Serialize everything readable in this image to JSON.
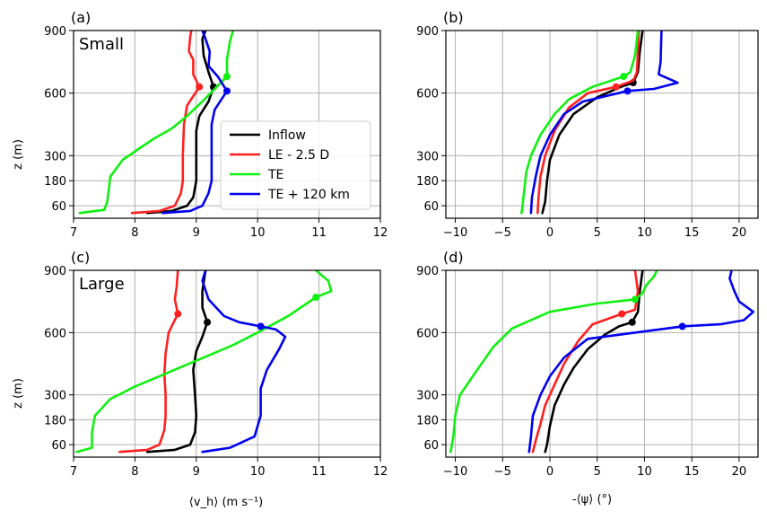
{
  "figure": {
    "legend": [
      {
        "label": "Inflow",
        "color": "#000000"
      },
      {
        "label": "LE - 2.5 D",
        "color": "#ff2020"
      },
      {
        "label": "TE",
        "color": "#10f010"
      },
      {
        "label": "TE + 120 km",
        "color": "#0000ee"
      }
    ],
    "xlabel_left": "⟨v_h⟩ (m s⁻¹)",
    "xlabel_right": "-⟨ψ⟩ (°)",
    "ylabel": "z (m)"
  },
  "chart_data": [
    {
      "type": "line",
      "panel": "(a)",
      "annotation": "Small",
      "xlim": [
        7,
        12
      ],
      "ylim": [
        0,
        900
      ],
      "xticks": [
        7,
        8,
        9,
        10,
        11,
        12
      ],
      "yticks": [
        60,
        180,
        300,
        600,
        900
      ],
      "series": [
        {
          "name": "Inflow",
          "color": "#000000",
          "marker": [
            9.28,
            630
          ],
          "points": [
            [
              8.2,
              25
            ],
            [
              8.6,
              35
            ],
            [
              8.85,
              60
            ],
            [
              8.95,
              100
            ],
            [
              9.0,
              180
            ],
            [
              9.0,
              300
            ],
            [
              9.0,
              420
            ],
            [
              9.05,
              490
            ],
            [
              9.2,
              560
            ],
            [
              9.28,
              630
            ],
            [
              9.2,
              700
            ],
            [
              9.12,
              780
            ],
            [
              9.1,
              860
            ],
            [
              9.15,
              900
            ]
          ]
        },
        {
          "name": "LE - 2.5 D",
          "color": "#ff2020",
          "marker": [
            9.05,
            630
          ],
          "points": [
            [
              7.95,
              25
            ],
            [
              8.4,
              35
            ],
            [
              8.65,
              60
            ],
            [
              8.75,
              120
            ],
            [
              8.78,
              180
            ],
            [
              8.78,
              300
            ],
            [
              8.8,
              450
            ],
            [
              8.85,
              540
            ],
            [
              9.05,
              630
            ],
            [
              8.95,
              690
            ],
            [
              8.95,
              760
            ],
            [
              8.88,
              800
            ],
            [
              8.9,
              870
            ],
            [
              8.92,
              900
            ]
          ]
        },
        {
          "name": "TE",
          "color": "#10f010",
          "marker": [
            9.5,
            680
          ],
          "points": [
            [
              7.1,
              25
            ],
            [
              7.5,
              40
            ],
            [
              7.55,
              80
            ],
            [
              7.6,
              200
            ],
            [
              7.8,
              280
            ],
            [
              8.1,
              340
            ],
            [
              8.3,
              380
            ],
            [
              8.6,
              430
            ],
            [
              8.85,
              490
            ],
            [
              9.1,
              560
            ],
            [
              9.3,
              620
            ],
            [
              9.5,
              680
            ],
            [
              9.5,
              760
            ],
            [
              9.55,
              850
            ],
            [
              9.6,
              900
            ]
          ]
        },
        {
          "name": "TE + 120 km",
          "color": "#0000ee",
          "marker": [
            9.5,
            610
          ],
          "points": [
            [
              8.45,
              25
            ],
            [
              8.9,
              35
            ],
            [
              9.1,
              60
            ],
            [
              9.2,
              120
            ],
            [
              9.25,
              180
            ],
            [
              9.25,
              300
            ],
            [
              9.25,
              450
            ],
            [
              9.3,
              520
            ],
            [
              9.5,
              610
            ],
            [
              9.35,
              680
            ],
            [
              9.2,
              730
            ],
            [
              9.22,
              800
            ],
            [
              9.15,
              860
            ],
            [
              9.1,
              900
            ]
          ]
        }
      ]
    },
    {
      "type": "line",
      "panel": "(b)",
      "annotation": "",
      "xlim": [
        -11,
        22
      ],
      "ylim": [
        0,
        900
      ],
      "xticks": [
        -10,
        -5,
        0,
        5,
        10,
        15,
        20
      ],
      "yticks": [
        60,
        180,
        300,
        600,
        900
      ],
      "series": [
        {
          "name": "Inflow",
          "color": "#000000",
          "marker": [
            8.8,
            650
          ],
          "points": [
            [
              -0.8,
              25
            ],
            [
              -0.5,
              80
            ],
            [
              -0.3,
              180
            ],
            [
              0.0,
              280
            ],
            [
              1.0,
              400
            ],
            [
              2.5,
              500
            ],
            [
              5.0,
              580
            ],
            [
              7.5,
              630
            ],
            [
              8.8,
              650
            ],
            [
              9.3,
              700
            ],
            [
              9.5,
              800
            ],
            [
              9.8,
              900
            ]
          ]
        },
        {
          "name": "LE - 2.5 D",
          "color": "#ff2020",
          "marker": [
            7.0,
            630
          ],
          "points": [
            [
              -1.3,
              25
            ],
            [
              -1.2,
              100
            ],
            [
              -1.0,
              200
            ],
            [
              -0.5,
              300
            ],
            [
              0.5,
              420
            ],
            [
              2.0,
              530
            ],
            [
              4.0,
              600
            ],
            [
              7.0,
              630
            ],
            [
              8.8,
              660
            ],
            [
              9.2,
              700
            ],
            [
              9.3,
              800
            ],
            [
              9.4,
              900
            ]
          ]
        },
        {
          "name": "TE",
          "color": "#10f010",
          "marker": [
            7.8,
            680
          ],
          "points": [
            [
              -3.0,
              25
            ],
            [
              -2.8,
              100
            ],
            [
              -2.5,
              220
            ],
            [
              -2.0,
              300
            ],
            [
              -1.0,
              400
            ],
            [
              0.5,
              500
            ],
            [
              2.0,
              570
            ],
            [
              4.5,
              630
            ],
            [
              7.8,
              680
            ],
            [
              8.5,
              700
            ],
            [
              9.0,
              780
            ],
            [
              9.3,
              900
            ]
          ]
        },
        {
          "name": "TE + 120 km",
          "color": "#0000ee",
          "marker": [
            8.2,
            610
          ],
          "points": [
            [
              -2.0,
              25
            ],
            [
              -1.9,
              100
            ],
            [
              -1.5,
              200
            ],
            [
              -1.0,
              300
            ],
            [
              0.0,
              400
            ],
            [
              1.5,
              500
            ],
            [
              3.5,
              560
            ],
            [
              8.2,
              610
            ],
            [
              11.0,
              620
            ],
            [
              13.5,
              650
            ],
            [
              11.5,
              690
            ],
            [
              11.7,
              750
            ],
            [
              11.8,
              900
            ]
          ]
        }
      ]
    },
    {
      "type": "line",
      "panel": "(c)",
      "annotation": "Large",
      "xlim": [
        7,
        12
      ],
      "ylim": [
        0,
        900
      ],
      "xticks": [
        7,
        8,
        9,
        10,
        11,
        12
      ],
      "yticks": [
        60,
        180,
        300,
        600,
        900
      ],
      "series": [
        {
          "name": "Inflow",
          "color": "#000000",
          "marker": [
            9.18,
            650
          ],
          "points": [
            [
              8.2,
              25
            ],
            [
              8.65,
              35
            ],
            [
              8.9,
              60
            ],
            [
              8.98,
              120
            ],
            [
              9.0,
              200
            ],
            [
              8.98,
              300
            ],
            [
              8.95,
              420
            ],
            [
              9.0,
              510
            ],
            [
              9.1,
              580
            ],
            [
              9.18,
              650
            ],
            [
              9.1,
              720
            ],
            [
              9.1,
              800
            ],
            [
              9.15,
              900
            ]
          ]
        },
        {
          "name": "LE - 2.5 D",
          "color": "#ff2020",
          "marker": [
            8.7,
            690
          ],
          "points": [
            [
              7.75,
              25
            ],
            [
              8.2,
              35
            ],
            [
              8.4,
              60
            ],
            [
              8.48,
              130
            ],
            [
              8.5,
              200
            ],
            [
              8.5,
              300
            ],
            [
              8.48,
              400
            ],
            [
              8.5,
              500
            ],
            [
              8.55,
              600
            ],
            [
              8.7,
              690
            ],
            [
              8.65,
              760
            ],
            [
              8.68,
              820
            ],
            [
              8.7,
              900
            ]
          ]
        },
        {
          "name": "TE",
          "color": "#10f010",
          "marker": [
            10.95,
            770
          ],
          "points": [
            [
              7.05,
              25
            ],
            [
              7.3,
              45
            ],
            [
              7.3,
              120
            ],
            [
              7.35,
              200
            ],
            [
              7.6,
              280
            ],
            [
              8.0,
              340
            ],
            [
              8.4,
              390
            ],
            [
              8.8,
              440
            ],
            [
              9.2,
              490
            ],
            [
              9.6,
              540
            ],
            [
              10.0,
              600
            ],
            [
              10.5,
              680
            ],
            [
              10.95,
              770
            ],
            [
              11.2,
              800
            ],
            [
              11.15,
              850
            ],
            [
              10.95,
              900
            ]
          ]
        },
        {
          "name": "TE + 120 km",
          "color": "#0000ee",
          "marker": [
            10.05,
            630
          ],
          "points": [
            [
              9.1,
              25
            ],
            [
              9.55,
              45
            ],
            [
              9.95,
              100
            ],
            [
              10.05,
              200
            ],
            [
              10.05,
              330
            ],
            [
              10.15,
              420
            ],
            [
              10.35,
              520
            ],
            [
              10.45,
              580
            ],
            [
              10.3,
              615
            ],
            [
              10.05,
              630
            ],
            [
              9.7,
              650
            ],
            [
              9.45,
              680
            ],
            [
              9.2,
              760
            ],
            [
              9.1,
              850
            ],
            [
              9.15,
              900
            ]
          ]
        }
      ]
    },
    {
      "type": "line",
      "panel": "(d)",
      "annotation": "",
      "xlim": [
        -11,
        22
      ],
      "ylim": [
        0,
        900
      ],
      "xticks": [
        -10,
        -5,
        0,
        5,
        10,
        15,
        20
      ],
      "yticks": [
        60,
        180,
        300,
        600,
        900
      ],
      "series": [
        {
          "name": "Inflow",
          "color": "#000000",
          "marker": [
            8.7,
            650
          ],
          "points": [
            [
              -0.5,
              25
            ],
            [
              -0.3,
              60
            ],
            [
              0.0,
              150
            ],
            [
              0.5,
              250
            ],
            [
              1.5,
              350
            ],
            [
              2.5,
              430
            ],
            [
              4.0,
              520
            ],
            [
              5.8,
              590
            ],
            [
              7.3,
              630
            ],
            [
              8.7,
              650
            ],
            [
              9.3,
              700
            ],
            [
              9.5,
              800
            ],
            [
              9.8,
              900
            ]
          ]
        },
        {
          "name": "LE - 2.5 D",
          "color": "#ff2020",
          "marker": [
            7.6,
            690
          ],
          "points": [
            [
              -1.8,
              25
            ],
            [
              -1.5,
              80
            ],
            [
              -1.0,
              160
            ],
            [
              -0.5,
              250
            ],
            [
              0.5,
              350
            ],
            [
              1.5,
              450
            ],
            [
              3.0,
              560
            ],
            [
              4.5,
              640
            ],
            [
              7.6,
              690
            ],
            [
              9.0,
              710
            ],
            [
              9.3,
              800
            ],
            [
              9.0,
              900
            ]
          ]
        },
        {
          "name": "TE",
          "color": "#10f010",
          "marker": [
            9.0,
            760
          ],
          "points": [
            [
              -10.5,
              25
            ],
            [
              -10.2,
              100
            ],
            [
              -10.0,
              200
            ],
            [
              -9.5,
              300
            ],
            [
              -8.0,
              400
            ],
            [
              -6.0,
              530
            ],
            [
              -4.0,
              620
            ],
            [
              0.0,
              700
            ],
            [
              5.0,
              740
            ],
            [
              9.0,
              760
            ],
            [
              9.8,
              790
            ],
            [
              10.2,
              830
            ],
            [
              11.0,
              870
            ],
            [
              11.3,
              900
            ]
          ]
        },
        {
          "name": "TE + 120 km",
          "color": "#0000ee",
          "marker": [
            14.0,
            630
          ],
          "points": [
            [
              -2.2,
              25
            ],
            [
              -2.0,
              100
            ],
            [
              -1.8,
              200
            ],
            [
              -1.0,
              300
            ],
            [
              0.0,
              390
            ],
            [
              1.5,
              480
            ],
            [
              4.0,
              570
            ],
            [
              14.0,
              630
            ],
            [
              18.0,
              640
            ],
            [
              20.5,
              660
            ],
            [
              21.5,
              700
            ],
            [
              20.0,
              750
            ],
            [
              19.5,
              800
            ],
            [
              19.0,
              860
            ],
            [
              19.2,
              900
            ]
          ]
        }
      ]
    }
  ]
}
